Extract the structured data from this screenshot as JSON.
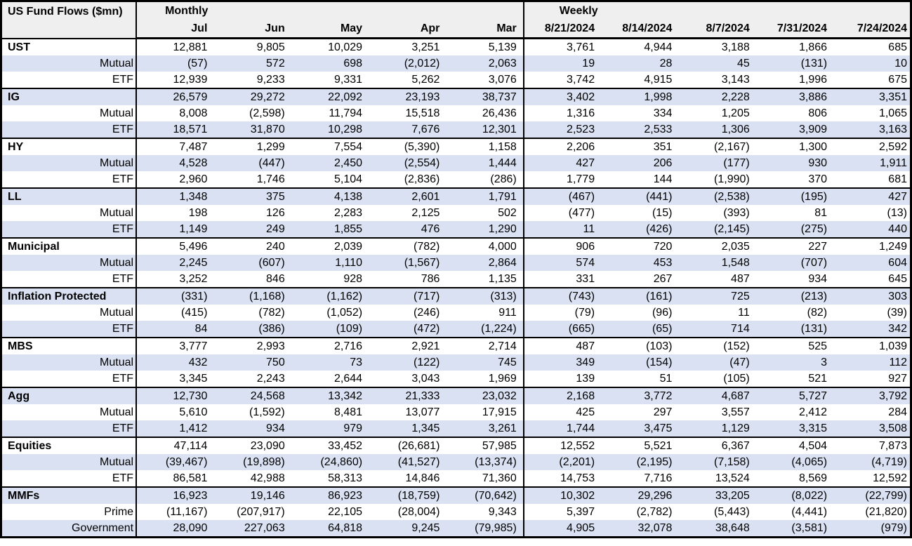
{
  "header": {
    "title": "US Fund Flows ($mn)",
    "monthly_label": "Monthly",
    "weekly_label": "Weekly"
  },
  "colors": {
    "stripe": "#d9e1f2",
    "header_bg": "#efefef",
    "border": "#000000"
  },
  "chart_data": {
    "type": "table",
    "title": "US Fund Flows ($mn)",
    "column_groups": [
      {
        "label": "Monthly",
        "columns": [
          "Jul",
          "Jun",
          "May",
          "Apr",
          "Mar"
        ]
      },
      {
        "label": "Weekly",
        "columns": [
          "8/21/2024",
          "8/14/2024",
          "8/7/2024",
          "7/31/2024",
          "7/24/2024"
        ]
      }
    ],
    "groups": [
      {
        "label": "UST",
        "monthly": [
          "12,881",
          "9,805",
          "10,029",
          "3,251",
          "5,139"
        ],
        "weekly": [
          "3,761",
          "4,944",
          "3,188",
          "1,866",
          "685"
        ],
        "sub_rows": [
          {
            "label": "Mutual",
            "monthly": [
              "(57)",
              "572",
              "698",
              "(2,012)",
              "2,063"
            ],
            "weekly": [
              "19",
              "28",
              "45",
              "(131)",
              "10"
            ]
          },
          {
            "label": "ETF",
            "monthly": [
              "12,939",
              "9,233",
              "9,331",
              "5,262",
              "3,076"
            ],
            "weekly": [
              "3,742",
              "4,915",
              "3,143",
              "1,996",
              "675"
            ]
          }
        ]
      },
      {
        "label": "IG",
        "monthly": [
          "26,579",
          "29,272",
          "22,092",
          "23,193",
          "38,737"
        ],
        "weekly": [
          "3,402",
          "1,998",
          "2,228",
          "3,886",
          "3,351"
        ],
        "sub_rows": [
          {
            "label": "Mutual",
            "monthly": [
              "8,008",
              "(2,598)",
              "11,794",
              "15,518",
              "26,436"
            ],
            "weekly": [
              "1,316",
              "334",
              "1,205",
              "806",
              "1,065"
            ]
          },
          {
            "label": "ETF",
            "monthly": [
              "18,571",
              "31,870",
              "10,298",
              "7,676",
              "12,301"
            ],
            "weekly": [
              "2,523",
              "2,533",
              "1,306",
              "3,909",
              "3,163"
            ]
          }
        ]
      },
      {
        "label": "HY",
        "monthly": [
          "7,487",
          "1,299",
          "7,554",
          "(5,390)",
          "1,158"
        ],
        "weekly": [
          "2,206",
          "351",
          "(2,167)",
          "1,300",
          "2,592"
        ],
        "sub_rows": [
          {
            "label": "Mutual",
            "monthly": [
              "4,528",
              "(447)",
              "2,450",
              "(2,554)",
              "1,444"
            ],
            "weekly": [
              "427",
              "206",
              "(177)",
              "930",
              "1,911"
            ]
          },
          {
            "label": "ETF",
            "monthly": [
              "2,960",
              "1,746",
              "5,104",
              "(2,836)",
              "(286)"
            ],
            "weekly": [
              "1,779",
              "144",
              "(1,990)",
              "370",
              "681"
            ]
          }
        ]
      },
      {
        "label": "LL",
        "monthly": [
          "1,348",
          "375",
          "4,138",
          "2,601",
          "1,791"
        ],
        "weekly": [
          "(467)",
          "(441)",
          "(2,538)",
          "(195)",
          "427"
        ],
        "sub_rows": [
          {
            "label": "Mutual",
            "monthly": [
              "198",
              "126",
              "2,283",
              "2,125",
              "502"
            ],
            "weekly": [
              "(477)",
              "(15)",
              "(393)",
              "81",
              "(13)"
            ]
          },
          {
            "label": "ETF",
            "monthly": [
              "1,149",
              "249",
              "1,855",
              "476",
              "1,290"
            ],
            "weekly": [
              "11",
              "(426)",
              "(2,145)",
              "(275)",
              "440"
            ]
          }
        ]
      },
      {
        "label": "Municipal",
        "monthly": [
          "5,496",
          "240",
          "2,039",
          "(782)",
          "4,000"
        ],
        "weekly": [
          "906",
          "720",
          "2,035",
          "227",
          "1,249"
        ],
        "sub_rows": [
          {
            "label": "Mutual",
            "monthly": [
              "2,245",
              "(607)",
              "1,110",
              "(1,567)",
              "2,864"
            ],
            "weekly": [
              "574",
              "453",
              "1,548",
              "(707)",
              "604"
            ]
          },
          {
            "label": "ETF",
            "monthly": [
              "3,252",
              "846",
              "928",
              "786",
              "1,135"
            ],
            "weekly": [
              "331",
              "267",
              "487",
              "934",
              "645"
            ]
          }
        ]
      },
      {
        "label": "Inflation Protected",
        "monthly": [
          "(331)",
          "(1,168)",
          "(1,162)",
          "(717)",
          "(313)"
        ],
        "weekly": [
          "(743)",
          "(161)",
          "725",
          "(213)",
          "303"
        ],
        "sub_rows": [
          {
            "label": "Mutual",
            "monthly": [
              "(415)",
              "(782)",
              "(1,052)",
              "(246)",
              "911"
            ],
            "weekly": [
              "(79)",
              "(96)",
              "11",
              "(82)",
              "(39)"
            ]
          },
          {
            "label": "ETF",
            "monthly": [
              "84",
              "(386)",
              "(109)",
              "(472)",
              "(1,224)"
            ],
            "weekly": [
              "(665)",
              "(65)",
              "714",
              "(131)",
              "342"
            ]
          }
        ]
      },
      {
        "label": "MBS",
        "monthly": [
          "3,777",
          "2,993",
          "2,716",
          "2,921",
          "2,714"
        ],
        "weekly": [
          "487",
          "(103)",
          "(152)",
          "525",
          "1,039"
        ],
        "sub_rows": [
          {
            "label": "Mutual",
            "monthly": [
              "432",
              "750",
              "73",
              "(122)",
              "745"
            ],
            "weekly": [
              "349",
              "(154)",
              "(47)",
              "3",
              "112"
            ]
          },
          {
            "label": "ETF",
            "monthly": [
              "3,345",
              "2,243",
              "2,644",
              "3,043",
              "1,969"
            ],
            "weekly": [
              "139",
              "51",
              "(105)",
              "521",
              "927"
            ]
          }
        ]
      },
      {
        "label": "Agg",
        "monthly": [
          "12,730",
          "24,568",
          "13,342",
          "21,333",
          "23,032"
        ],
        "weekly": [
          "2,168",
          "3,772",
          "4,687",
          "5,727",
          "3,792"
        ],
        "sub_rows": [
          {
            "label": "Mutual",
            "monthly": [
              "5,610",
              "(1,592)",
              "8,481",
              "13,077",
              "17,915"
            ],
            "weekly": [
              "425",
              "297",
              "3,557",
              "2,412",
              "284"
            ]
          },
          {
            "label": "ETF",
            "monthly": [
              "1,412",
              "934",
              "979",
              "1,345",
              "3,261"
            ],
            "weekly": [
              "1,744",
              "3,475",
              "1,129",
              "3,315",
              "3,508"
            ]
          }
        ]
      },
      {
        "label": "Equities",
        "monthly": [
          "47,114",
          "23,090",
          "33,452",
          "(26,681)",
          "57,985"
        ],
        "weekly": [
          "12,552",
          "5,521",
          "6,367",
          "4,504",
          "7,873"
        ],
        "sub_rows": [
          {
            "label": "Mutual",
            "monthly": [
              "(39,467)",
              "(19,898)",
              "(24,860)",
              "(41,527)",
              "(13,374)"
            ],
            "weekly": [
              "(2,201)",
              "(2,195)",
              "(7,158)",
              "(4,065)",
              "(4,719)"
            ]
          },
          {
            "label": "ETF",
            "monthly": [
              "86,581",
              "42,988",
              "58,313",
              "14,846",
              "71,360"
            ],
            "weekly": [
              "14,753",
              "7,716",
              "13,524",
              "8,569",
              "12,592"
            ]
          }
        ]
      },
      {
        "label": "MMFs",
        "monthly": [
          "16,923",
          "19,146",
          "86,923",
          "(18,759)",
          "(70,642)"
        ],
        "weekly": [
          "10,302",
          "29,296",
          "33,205",
          "(8,022)",
          "(22,799)"
        ],
        "sub_rows": [
          {
            "label": "Prime",
            "monthly": [
              "(11,167)",
              "(207,917)",
              "22,105",
              "(28,004)",
              "9,343"
            ],
            "weekly": [
              "5,397",
              "(2,782)",
              "(5,443)",
              "(4,441)",
              "(21,820)"
            ]
          },
          {
            "label": "Government",
            "monthly": [
              "28,090",
              "227,063",
              "64,818",
              "9,245",
              "(79,985)"
            ],
            "weekly": [
              "4,905",
              "32,078",
              "38,648",
              "(3,581)",
              "(979)"
            ]
          }
        ]
      }
    ]
  }
}
